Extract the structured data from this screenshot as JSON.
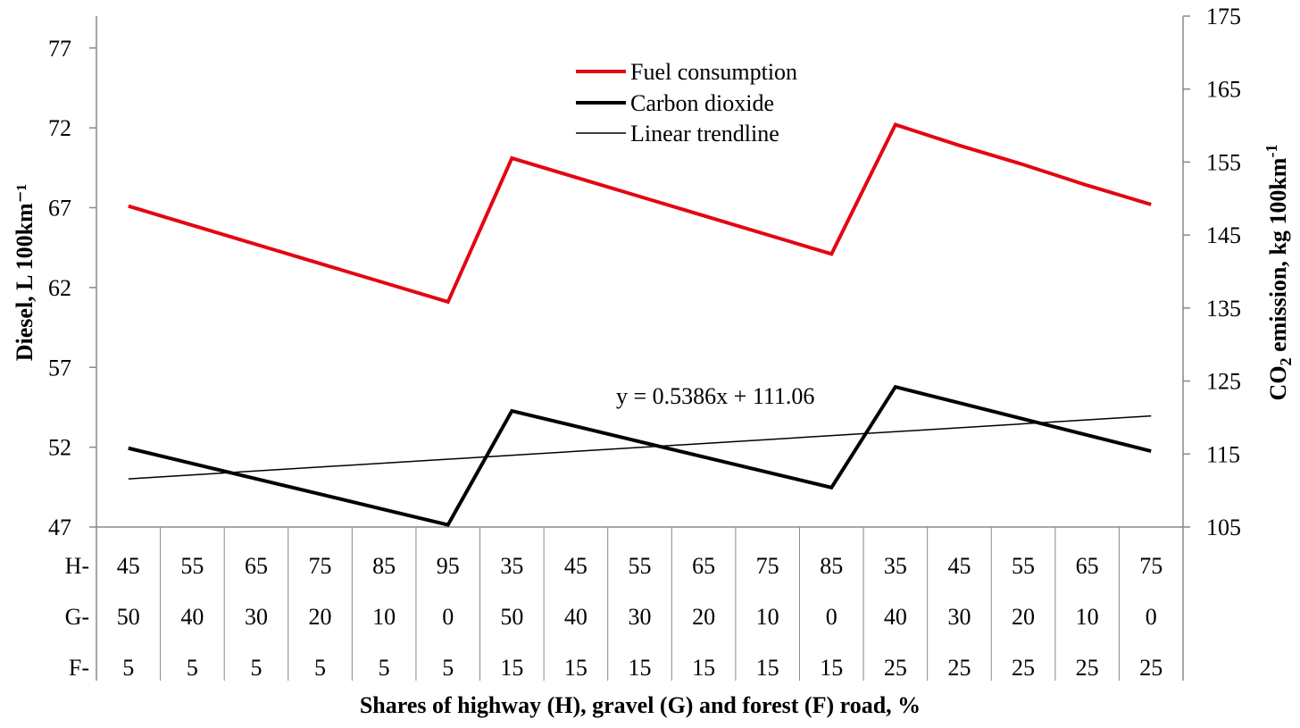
{
  "chart_data": {
    "type": "line",
    "title": "",
    "xlabel": "Shares of highway (H), gravel (G) and forest (F) road, %",
    "ylabel_left": "Diesel, L 100km⁻¹",
    "ylabel_right_parts": {
      "pre": "CO",
      "sub": "2",
      "post": " emission, kg 100km",
      "sup": "-1"
    },
    "ylim_left": [
      47,
      79
    ],
    "yticks_left": [
      47,
      52,
      57,
      62,
      67,
      72,
      77
    ],
    "ylim_right": [
      105,
      175
    ],
    "yticks_right": [
      105,
      115,
      125,
      135,
      145,
      155,
      165,
      175
    ],
    "grid": false,
    "legend_position": "top-center",
    "table_rows": [
      {
        "label": "H-",
        "values": [
          "45",
          "55",
          "65",
          "75",
          "85",
          "95",
          "35",
          "45",
          "55",
          "65",
          "75",
          "85",
          "35",
          "45",
          "55",
          "65",
          "75"
        ]
      },
      {
        "label": "G-",
        "values": [
          "50",
          "40",
          "30",
          "20",
          "10",
          "0",
          "50",
          "40",
          "30",
          "20",
          "10",
          "0",
          "40",
          "30",
          "20",
          "10",
          "0"
        ]
      },
      {
        "label": "F-",
        "values": [
          "5",
          "5",
          "5",
          "5",
          "5",
          "5",
          "15",
          "15",
          "15",
          "15",
          "15",
          "15",
          "25",
          "25",
          "25",
          "25",
          "25"
        ]
      }
    ],
    "series": [
      {
        "name": "Fuel consumption",
        "axis": "left",
        "color": "#e30613",
        "values": [
          67.1,
          65.9,
          64.7,
          63.5,
          62.3,
          61.1,
          70.1,
          68.9,
          67.7,
          66.5,
          65.3,
          64.1,
          72.2,
          70.9,
          69.7,
          68.4,
          67.2
        ]
      },
      {
        "name": "Carbon dioxide",
        "axis": "right",
        "color": "#000000",
        "values": [
          115.8,
          113.7,
          111.6,
          109.5,
          107.4,
          105.3,
          120.9,
          118.8,
          116.7,
          114.6,
          112.5,
          110.4,
          124.2,
          122.0,
          119.8,
          117.6,
          115.4
        ]
      },
      {
        "name": "Linear trendline",
        "axis": "right",
        "color": "#000000",
        "equation": "y = 0.5386x + 111.06",
        "slope": 0.5386,
        "intercept": 111.06
      }
    ]
  }
}
